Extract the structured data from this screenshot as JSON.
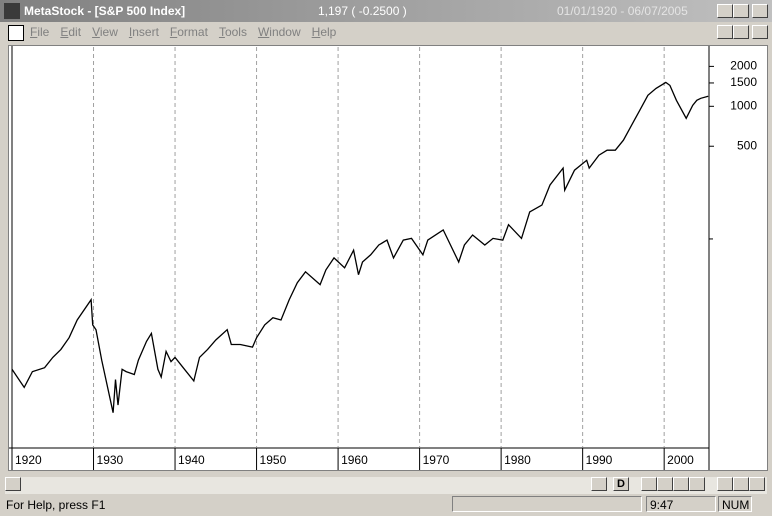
{
  "window": {
    "title": "MetaStock - [S&P 500 Index]",
    "last_price": "1,197 ( -0.2500 )",
    "date_range": "01/01/1920 - 06/07/2005"
  },
  "menu": [
    "File",
    "Edit",
    "View",
    "Insert",
    "Format",
    "Tools",
    "Window",
    "Help"
  ],
  "toolbar": {
    "period": "D"
  },
  "status_bar": {
    "help": "For Help, press F1",
    "time": "9:47",
    "mode": "NUM"
  },
  "chart_data": {
    "type": "line",
    "color": "#000000",
    "log_scale": true,
    "grid": "x",
    "x": [
      1920.0,
      1921.5,
      1922.5,
      1924.0,
      1925.0,
      1926.0,
      1927.0,
      1928.0,
      1929.7,
      1929.9,
      1930.3,
      1931.0,
      1932.4,
      1932.7,
      1933.0,
      1933.5,
      1934.0,
      1935.0,
      1935.5,
      1936.5,
      1937.1,
      1937.9,
      1938.3,
      1938.9,
      1939.5,
      1940.0,
      1941.0,
      1942.3,
      1943.0,
      1944.0,
      1945.0,
      1946.4,
      1946.9,
      1948.0,
      1949.5,
      1950.0,
      1951.0,
      1952.0,
      1953.0,
      1954.0,
      1955.0,
      1956.0,
      1957.8,
      1958.5,
      1959.5,
      1960.8,
      1961.9,
      1962.5,
      1963.0,
      1964.0,
      1965.0,
      1966.0,
      1966.8,
      1968.0,
      1969.0,
      1970.4,
      1971.0,
      1972.9,
      1974.8,
      1975.5,
      1976.5,
      1978.0,
      1979.0,
      1980.2,
      1980.9,
      1982.5,
      1983.5,
      1985.0,
      1986.0,
      1987.6,
      1987.8,
      1989.0,
      1990.5,
      1990.8,
      1992.0,
      1993.0,
      1994.0,
      1995.0,
      1996.0,
      1997.0,
      1998.0,
      1999.0,
      2000.2,
      2000.7,
      2001.5,
      2002.7,
      2003.5,
      2004.0,
      2004.5,
      2005.4
    ],
    "values": [
      10.4,
      7.6,
      10,
      10.7,
      12.8,
      14.7,
      18,
      24.5,
      34.8,
      22.5,
      20.7,
      12.2,
      4.9,
      8.7,
      5.6,
      10.4,
      10,
      9.5,
      12.2,
      16.9,
      19.4,
      10.4,
      9.1,
      14.2,
      11.9,
      12.8,
      10.7,
      8.5,
      12.8,
      14.7,
      17.3,
      20.7,
      16,
      16,
      15.3,
      18,
      22.5,
      25.5,
      24.5,
      34.8,
      46.8,
      56.5,
      45.3,
      58.4,
      72,
      60.6,
      82.3,
      53.8,
      67,
      76,
      90,
      98,
      72,
      98,
      101,
      76,
      98,
      117,
      67,
      90,
      107,
      90,
      101,
      98,
      128,
      101,
      160,
      180,
      255,
      342,
      233,
      330,
      392,
      342,
      428,
      467,
      467,
      555,
      720,
      932,
      1210,
      1365,
      1515,
      1438,
      1110,
      812,
      1017,
      1110,
      1150,
      1190
    ],
    "xlim": [
      1920,
      2005.5
    ],
    "xticks": [
      1920,
      1930,
      1940,
      1950,
      1960,
      1970,
      1980,
      1990,
      2000
    ],
    "ylim": [
      2.7,
      2800
    ],
    "yticks": [
      500,
      1000,
      1500,
      2000
    ],
    "yticks_minor": [
      100
    ]
  }
}
